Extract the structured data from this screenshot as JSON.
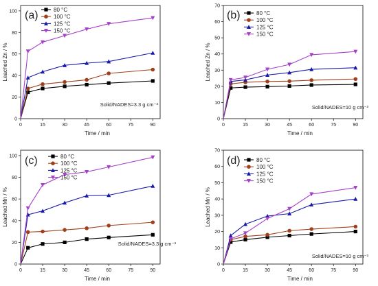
{
  "chart_data": [
    {
      "type": "line",
      "panel_label": "(a)",
      "xlabel": "Time / min",
      "ylabel": "Leached Zn / %",
      "xlim": [
        0,
        95
      ],
      "ylim": [
        0,
        105
      ],
      "xticks": [
        0,
        15,
        30,
        45,
        60,
        75,
        90
      ],
      "yticks": [
        0,
        20,
        40,
        60,
        80,
        100
      ],
      "x": [
        0,
        5,
        15,
        30,
        45,
        60,
        90
      ],
      "annotation": "Solid/NADES=3.3 g cm⁻³",
      "legend_position": "top-left",
      "series": [
        {
          "name": "80 °C",
          "color": "#000000",
          "marker": "square",
          "values": [
            0,
            24.5,
            28,
            30,
            31.5,
            33,
            35
          ]
        },
        {
          "name": "100 °C",
          "color": "#a0401a",
          "marker": "circle",
          "values": [
            0,
            28,
            32,
            34,
            36,
            42,
            45.5
          ]
        },
        {
          "name": "125 °C",
          "color": "#1a1aa8",
          "marker": "triangle-up",
          "values": [
            0,
            38,
            43.5,
            49.5,
            51.5,
            53,
            61
          ]
        },
        {
          "name": "150 °C",
          "color": "#a640c8",
          "marker": "triangle-down",
          "values": [
            0,
            62.5,
            71,
            77,
            83,
            88,
            93.5
          ]
        }
      ]
    },
    {
      "type": "line",
      "panel_label": "(b)",
      "xlabel": "Time / min",
      "ylabel": "Leached Zn / %",
      "xlim": [
        0,
        95
      ],
      "ylim": [
        0,
        70
      ],
      "xticks": [
        0,
        15,
        30,
        45,
        60,
        75,
        90
      ],
      "yticks": [
        0,
        10,
        20,
        30,
        40,
        50,
        60,
        70
      ],
      "x": [
        0,
        5,
        15,
        30,
        45,
        60,
        90
      ],
      "annotation": "Solid/NADES=10 g cm⁻³",
      "legend_position": "top-left",
      "series": [
        {
          "name": "80 °C",
          "color": "#000000",
          "marker": "square",
          "values": [
            0,
            19,
            19.5,
            19.8,
            20.2,
            20.8,
            21.2
          ]
        },
        {
          "name": "100 °C",
          "color": "#a0401a",
          "marker": "circle",
          "values": [
            0,
            21.5,
            22.5,
            23,
            23.2,
            23.8,
            24.5
          ]
        },
        {
          "name": "125 °C",
          "color": "#1a1aa8",
          "marker": "triangle-up",
          "values": [
            0,
            23,
            24,
            27,
            28.5,
            30.5,
            31.5
          ]
        },
        {
          "name": "150 °C",
          "color": "#a640c8",
          "marker": "triangle-down",
          "values": [
            0,
            24,
            25.5,
            30.5,
            33.5,
            39.5,
            41.5
          ]
        }
      ]
    },
    {
      "type": "line",
      "panel_label": "(c)",
      "xlabel": "Time / min",
      "ylabel": "Leached Mn / %",
      "xlim": [
        0,
        95
      ],
      "ylim": [
        0,
        105
      ],
      "xticks": [
        0,
        15,
        30,
        45,
        60,
        75,
        90
      ],
      "yticks": [
        0,
        20,
        40,
        60,
        80,
        100
      ],
      "x": [
        0,
        5,
        15,
        30,
        45,
        60,
        90
      ],
      "annotation": "Solid/NADES=3.3 g cm⁻³",
      "legend_position": "top-center",
      "series": [
        {
          "name": "80 °C",
          "color": "#000000",
          "marker": "square",
          "values": [
            0,
            15,
            18.5,
            20,
            23,
            24.5,
            27
          ]
        },
        {
          "name": "100 °C",
          "color": "#a0401a",
          "marker": "circle",
          "values": [
            0,
            29.5,
            30,
            31.5,
            33,
            35.5,
            38.5
          ]
        },
        {
          "name": "125 °C",
          "color": "#1a1aa8",
          "marker": "triangle-up",
          "values": [
            0,
            45.5,
            49,
            56.5,
            63,
            63.5,
            72
          ]
        },
        {
          "name": "150 °C",
          "color": "#a640c8",
          "marker": "triangle-down",
          "values": [
            0,
            51.5,
            73,
            82.5,
            85,
            89.5,
            98.5
          ]
        }
      ]
    },
    {
      "type": "line",
      "panel_label": "(d)",
      "xlabel": "Time / min",
      "ylabel": "Leached Mn / %",
      "xlim": [
        0,
        95
      ],
      "ylim": [
        0,
        70
      ],
      "xticks": [
        0,
        15,
        30,
        45,
        60,
        75,
        90
      ],
      "yticks": [
        0,
        10,
        20,
        30,
        40,
        50,
        60,
        70
      ],
      "x": [
        0,
        5,
        15,
        30,
        45,
        60,
        90
      ],
      "annotation": "Solid/NADES=10 g cm⁻³",
      "legend_position": "top-left",
      "series": [
        {
          "name": "80 °C",
          "color": "#000000",
          "marker": "square",
          "values": [
            0,
            13.5,
            15,
            16.5,
            17.5,
            18.5,
            20
          ]
        },
        {
          "name": "100 °C",
          "color": "#a0401a",
          "marker": "circle",
          "values": [
            0,
            15,
            17,
            18,
            20.5,
            21.5,
            23
          ]
        },
        {
          "name": "125 °C",
          "color": "#1a1aa8",
          "marker": "triangle-up",
          "values": [
            0,
            17.5,
            24.5,
            29.5,
            31,
            36.5,
            40
          ]
        },
        {
          "name": "150 °C",
          "color": "#a640c8",
          "marker": "triangle-down",
          "values": [
            0,
            15.5,
            19,
            28,
            34,
            43,
            47
          ]
        }
      ]
    }
  ]
}
